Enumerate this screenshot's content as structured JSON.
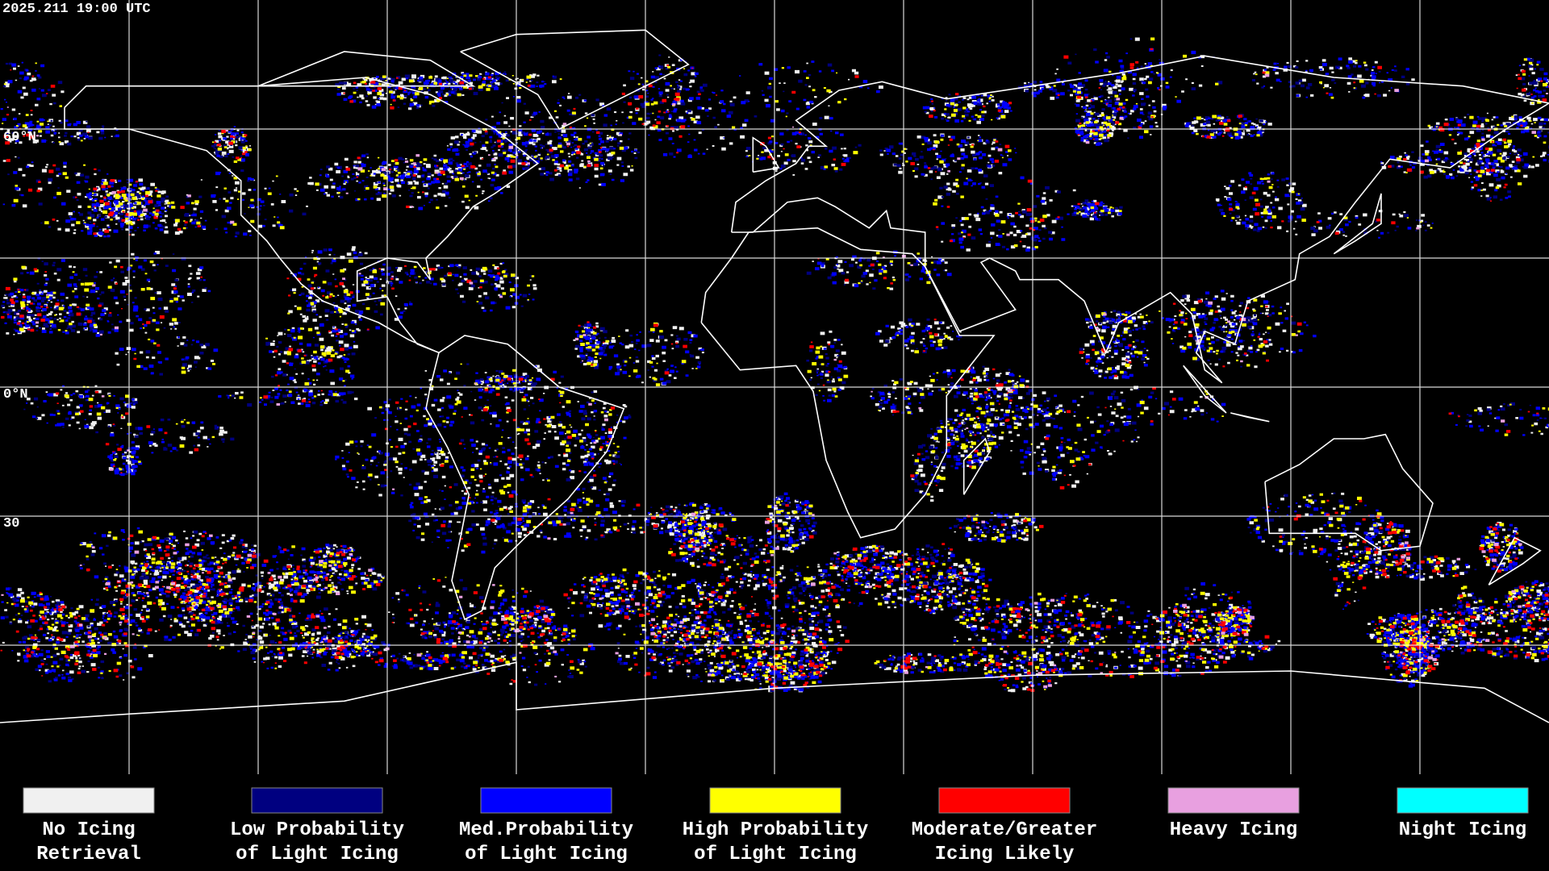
{
  "header": {
    "timestamp": "2025.211 19:00 UTC"
  },
  "map": {
    "lat_labels": [
      "60°N",
      "0°N",
      "30"
    ]
  },
  "legend": [
    {
      "lines": [
        "No Icing",
        "Retrieval"
      ],
      "color": "#f0f0f0"
    },
    {
      "lines": [
        "Low Probability",
        "of Light Icing"
      ],
      "color": "#000080"
    },
    {
      "lines": [
        "Med.Probability",
        "of Light Icing"
      ],
      "color": "#0000ff"
    },
    {
      "lines": [
        "High Probability",
        "of Light Icing"
      ],
      "color": "#ffff00"
    },
    {
      "lines": [
        "Moderate/Greater",
        "Icing Likely"
      ],
      "color": "#ff0000"
    },
    {
      "lines": [
        "Heavy Icing"
      ],
      "color": "#e8a0e0"
    },
    {
      "lines": [
        "Night Icing"
      ],
      "color": "#00ffff"
    }
  ]
}
